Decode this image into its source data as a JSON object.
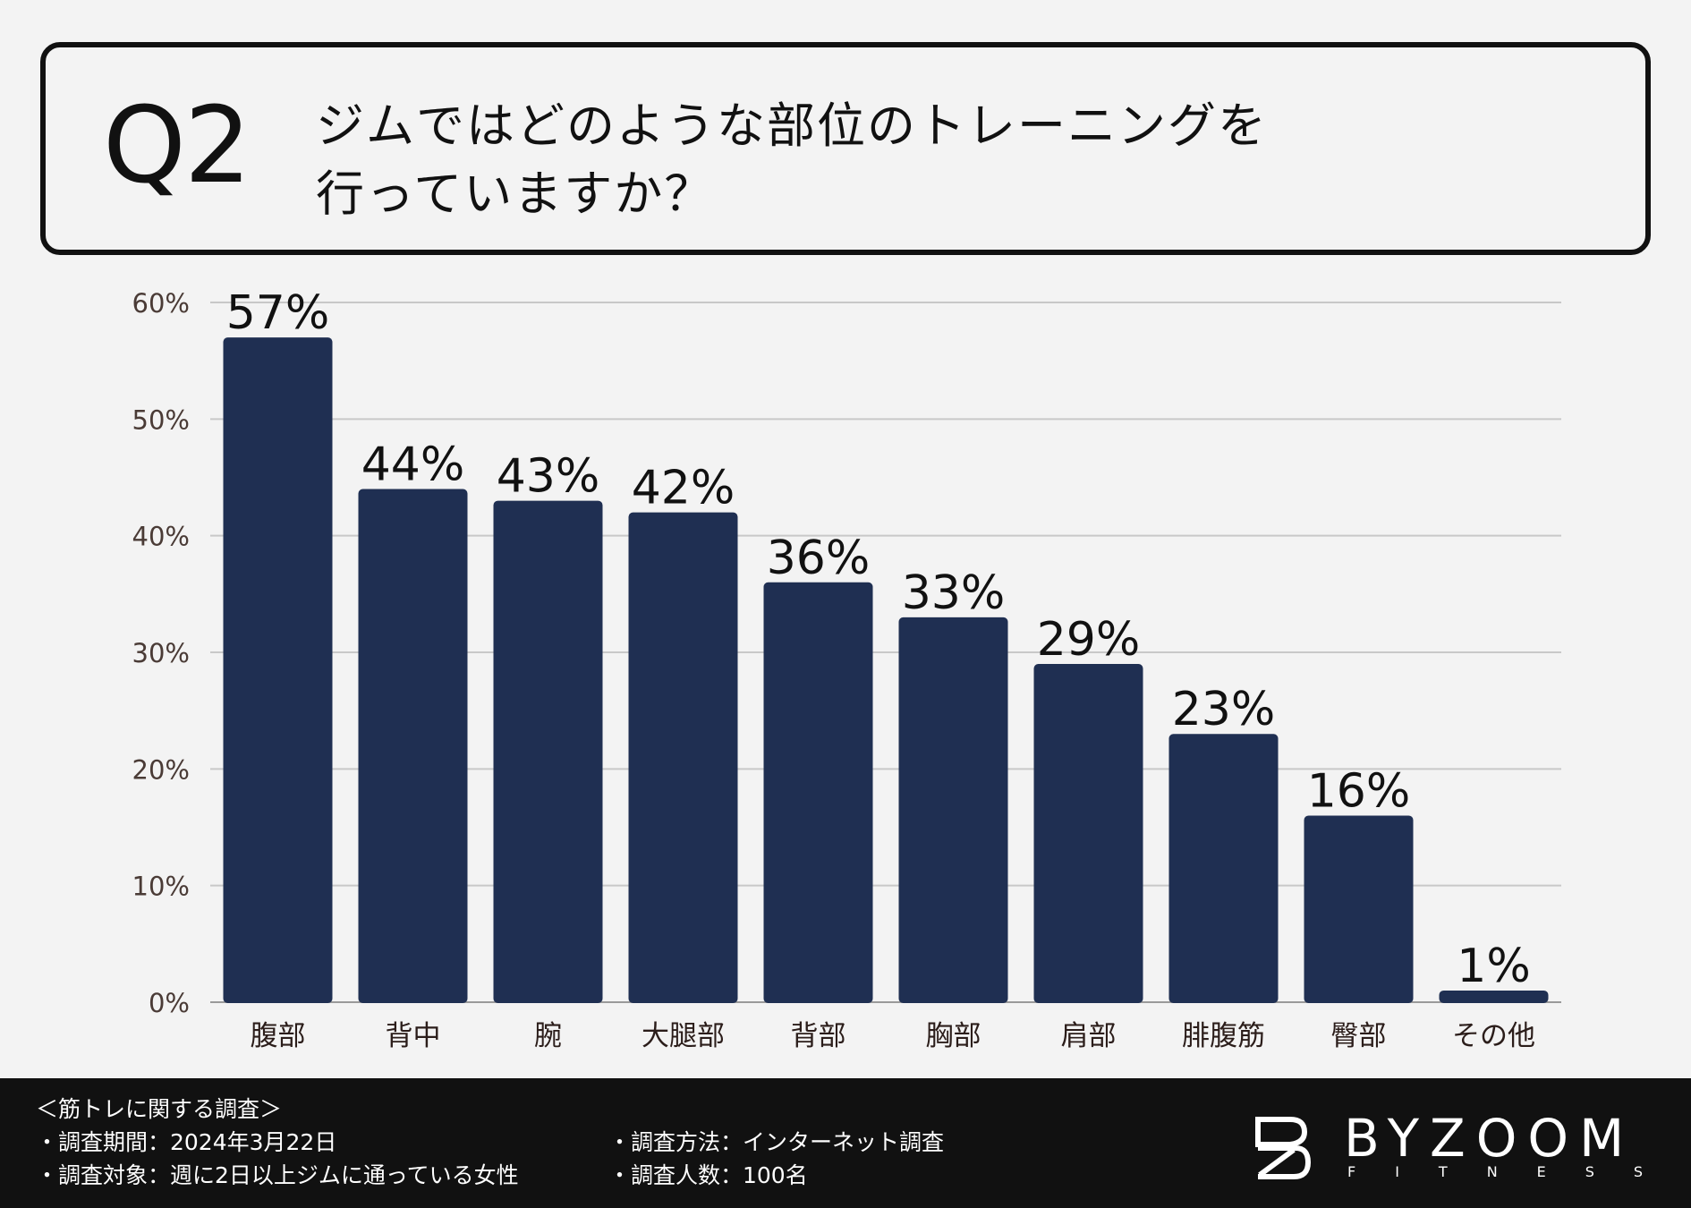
{
  "question": {
    "number": "Q2",
    "line1": "ジムではどのような部位のトレーニングを",
    "line2": "行っていますか？"
  },
  "chart_data": {
    "type": "bar",
    "title": "ジムではどのような部位のトレーニングを行っていますか？",
    "categories": [
      "腹部",
      "背中",
      "腕",
      "大腿部",
      "背部",
      "胸部",
      "肩部",
      "腓腹筋",
      "臀部",
      "その他"
    ],
    "values": [
      57,
      44,
      43,
      42,
      36,
      33,
      29,
      23,
      16,
      1
    ],
    "value_labels": [
      "57%",
      "44%",
      "43%",
      "42%",
      "36%",
      "33%",
      "29%",
      "23%",
      "16%",
      "1%"
    ],
    "yticks": [
      "0%",
      "10%",
      "20%",
      "30%",
      "40%",
      "50%",
      "60%"
    ],
    "ylim": [
      0,
      60
    ],
    "grid": true,
    "xlabel": "",
    "ylabel": "",
    "bar_color": "#1f2f52",
    "grid_color": "#c8c8c8",
    "label_color": "#111111",
    "tick_color": "#4a3b36"
  },
  "footer": {
    "heading": "＜筋トレに関する調査＞",
    "period": "・調査期間：2024年3月22日",
    "target": "・調査対象：週に2日以上ジムに通っている女性",
    "method": "・調査方法：インターネット調査",
    "count": "・調査人数：100名"
  },
  "brand": {
    "name": "BYZOOM",
    "sub": "FITNESS",
    "icon": "bz-logo-icon"
  }
}
